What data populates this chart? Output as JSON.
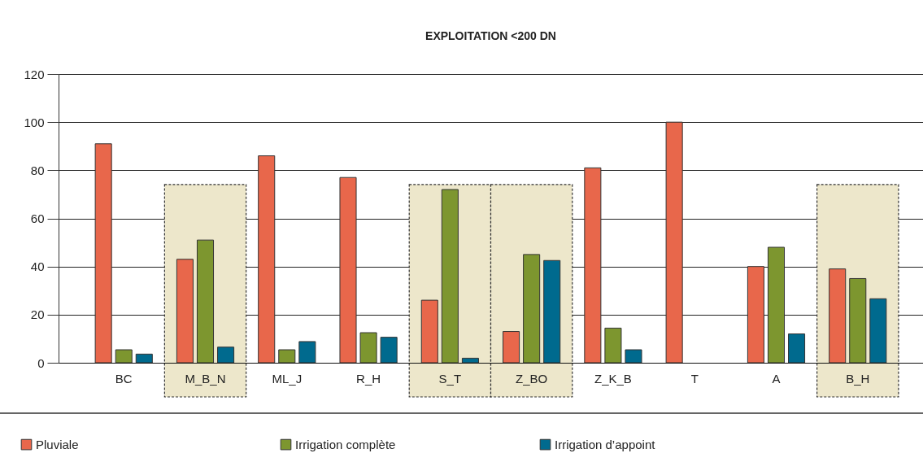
{
  "chart_data": {
    "type": "bar",
    "title": "EXPLOITATION <200 DN",
    "categories": [
      "BC",
      "M_B_N",
      "ML_J",
      "R_H",
      "S_T",
      "Z_BO",
      "Z_K_B",
      "T",
      "A",
      "B_H"
    ],
    "series": [
      {
        "name": "Pluviale",
        "color": "#e8674b",
        "values": [
          91,
          43,
          86,
          77,
          26,
          13,
          81,
          100,
          40,
          39
        ]
      },
      {
        "name": "Irrigation complète",
        "color": "#7d962f",
        "values": [
          5.4,
          51,
          5.4,
          12.5,
          72,
          45,
          14.4,
          null,
          48,
          35
        ]
      },
      {
        "name": "Irrigation d’appoint",
        "color": "#006a8e",
        "values": [
          3.6,
          6.5,
          8.8,
          10.6,
          1.9,
          42.5,
          5.4,
          null,
          12,
          26.6
        ]
      }
    ],
    "ylim": [
      0,
      120
    ],
    "yticks": [
      0,
      20,
      40,
      60,
      80,
      100,
      120
    ],
    "grid": "y",
    "legend": "bottom",
    "bands": [
      {
        "axis": "x",
        "from": "M_B_N",
        "to": "M_B_N",
        "color": "#ede7cb"
      },
      {
        "axis": "x",
        "from": "S_T",
        "to": "S_T",
        "color": "#ede7cb"
      },
      {
        "axis": "x",
        "from": "Z_BO",
        "to": "Z_BO",
        "color": "#ede7cb"
      },
      {
        "axis": "x",
        "from": "B_H",
        "to": "B_H",
        "color": "#ede7cb"
      }
    ]
  }
}
